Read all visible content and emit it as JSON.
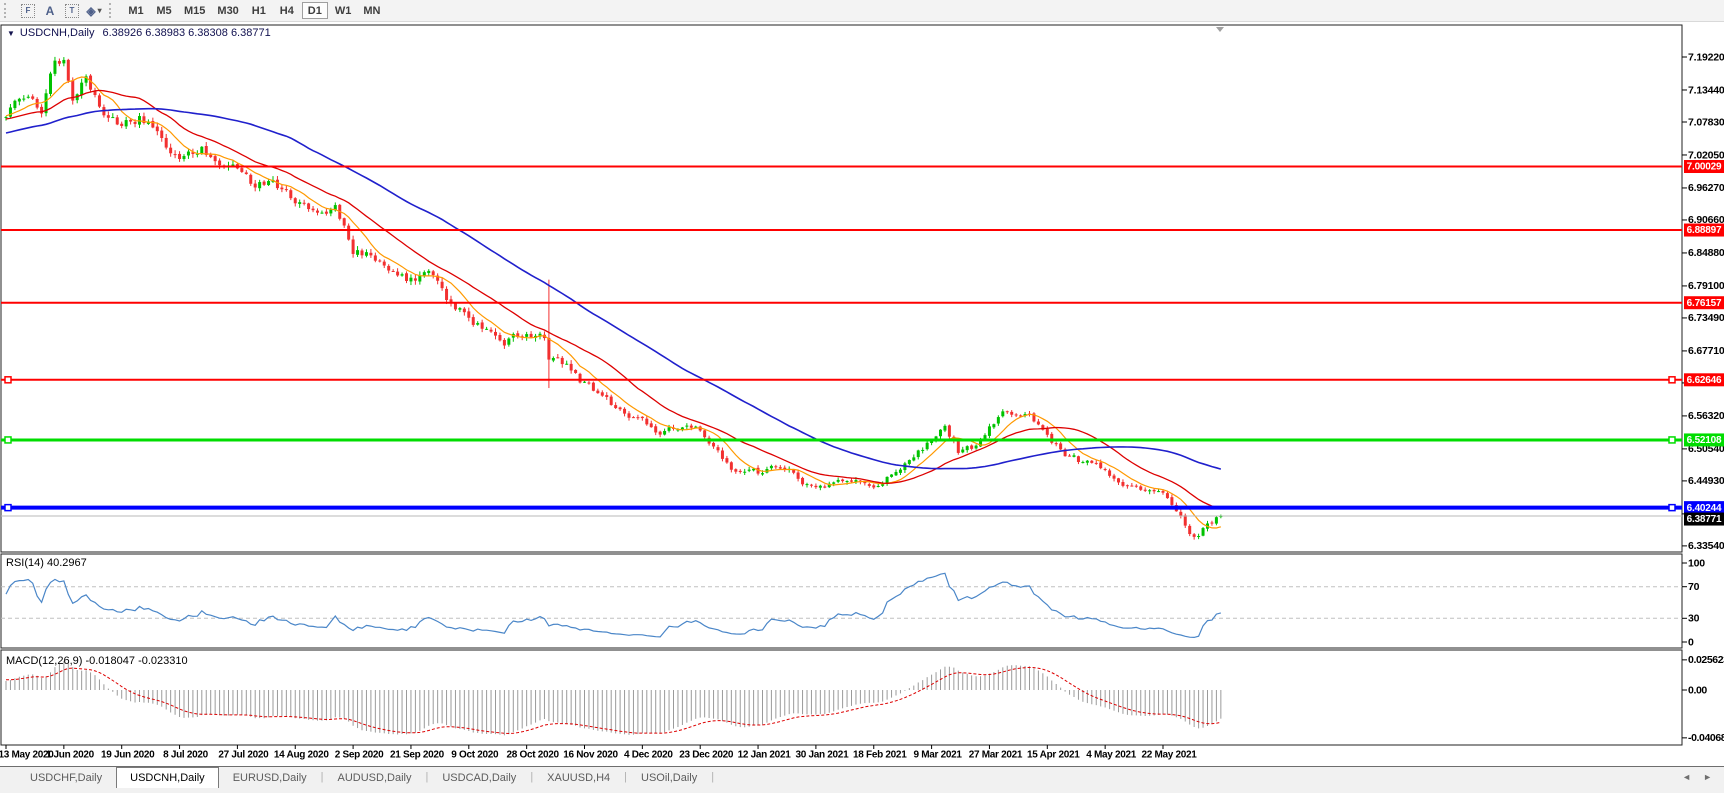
{
  "icons": {
    "collapse_triangle": "▼",
    "fibonacci_glyph": "F",
    "text_glyph": "A",
    "text_label_glyph": "T",
    "arrows_glyph": "◈",
    "dropdown_caret": "▾",
    "tab_scroll_left": "◄",
    "tab_scroll_right": "►",
    "chart_shift_marker": "triangle"
  },
  "toolbar": {
    "tools": [
      {
        "name": "fibonacci-tool",
        "glyph": "F",
        "boxed": true
      },
      {
        "name": "text-tool",
        "glyph": "A",
        "boxed": false
      },
      {
        "name": "text-label-tool",
        "glyph": "T",
        "boxed": true
      },
      {
        "name": "arrows-tool",
        "glyph": "◈",
        "boxed": false,
        "dropdown": true
      }
    ],
    "timeframes": [
      "M1",
      "M5",
      "M15",
      "M30",
      "H1",
      "H4",
      "D1",
      "W1",
      "MN"
    ],
    "active_timeframe": "D1"
  },
  "chart": {
    "title": "USDCNH,Daily",
    "quote_string": "6.38926 6.38983 6.38308 6.38771"
  },
  "chart_data": {
    "type": "candlestick",
    "symbol": "USDCNH",
    "period": "Daily",
    "quote": {
      "open": 6.38926,
      "high": 6.38983,
      "low": 6.38308,
      "close": 6.38771
    },
    "colors": {
      "up": "#00C200",
      "down": "#F23030",
      "ma_fast": "#FF9900",
      "ma_mid": "#DD0000",
      "ma_slow": "#2020CC",
      "hline_red": "#FF0000",
      "hline_green": "#00DD00",
      "hline_blue": "#0000FF",
      "bid_line": "#B8B8B8",
      "bid_label_bg": "#000000",
      "rsi_line": "#4A86C8",
      "rsi_level_dash": "#C0C0C0",
      "macd_histogram": "#9A9A9A",
      "macd_signal": "#DD0000",
      "panel_border": "#222222",
      "axis_text": "#000000"
    },
    "price_axis_ticks": [
      "7.19220",
      "7.13440",
      "7.07830",
      "7.02050",
      "6.96270",
      "6.90660",
      "6.84880",
      "6.79100",
      "6.73490",
      "6.67710",
      "6.62100",
      "6.56320",
      "6.50540",
      "6.44930",
      "6.39150",
      "6.33540"
    ],
    "x_axis_labels": [
      "13 May 2020",
      "1 Jun 2020",
      "19 Jun 2020",
      "8 Jul 2020",
      "27 Jul 2020",
      "14 Aug 2020",
      "2 Sep 2020",
      "21 Sep 2020",
      "9 Oct 2020",
      "28 Oct 2020",
      "16 Nov 2020",
      "4 Dec 2020",
      "23 Dec 2020",
      "12 Jan 2021",
      "30 Jan 2021",
      "18 Feb 2021",
      "9 Mar 2021",
      "27 Mar 2021",
      "15 Apr 2021",
      "4 May 2021",
      "22 May 2021"
    ],
    "candles_per_label": 13,
    "visible_candles": 274,
    "horizontal_lines": [
      {
        "price": 7.00029,
        "label": "7.00029",
        "color": "#FF0000",
        "width": 2,
        "selected": false
      },
      {
        "price": 6.88897,
        "label": "6.88897",
        "color": "#FF0000",
        "width": 2,
        "selected": false
      },
      {
        "price": 6.76157,
        "label": "6.76157",
        "color": "#FF0000",
        "width": 2,
        "selected": false
      },
      {
        "price": 6.62646,
        "label": "6.62646",
        "color": "#FF0000",
        "width": 2,
        "selected": true
      },
      {
        "price": 6.52108,
        "label": "6.52108",
        "color": "#00DD00",
        "width": 3,
        "selected": true
      },
      {
        "price": 6.40244,
        "label": "6.40244",
        "color": "#0000FF",
        "width": 4,
        "selected": true
      }
    ],
    "bid_line": {
      "price": 6.38771,
      "label": "6.38771"
    },
    "moving_averages": [
      {
        "name": "fast",
        "period": 8,
        "color": "#FF9900",
        "width": 1.2
      },
      {
        "name": "mid",
        "period": 21,
        "color": "#DD0000",
        "width": 1.3
      },
      {
        "name": "slow",
        "period": 55,
        "color": "#2020CC",
        "width": 1.6
      }
    ],
    "pre_history_anchors": [
      [
        -60,
        7.0
      ],
      [
        -45,
        7.03
      ],
      [
        -30,
        7.06
      ],
      [
        -15,
        7.08
      ],
      [
        -1,
        7.09
      ]
    ],
    "price_path_anchors": [
      [
        0,
        7.095
      ],
      [
        4,
        7.125
      ],
      [
        8,
        7.1
      ],
      [
        11,
        7.185
      ],
      [
        13,
        7.19
      ],
      [
        15,
        7.125
      ],
      [
        18,
        7.155
      ],
      [
        22,
        7.095
      ],
      [
        26,
        7.07
      ],
      [
        30,
        7.085
      ],
      [
        34,
        7.06
      ],
      [
        39,
        7.008
      ],
      [
        44,
        7.03
      ],
      [
        48,
        6.993
      ],
      [
        52,
        7.002
      ],
      [
        56,
        6.968
      ],
      [
        60,
        6.976
      ],
      [
        65,
        6.945
      ],
      [
        70,
        6.92
      ],
      [
        74,
        6.932
      ],
      [
        78,
        6.85
      ],
      [
        83,
        6.84
      ],
      [
        87,
        6.818
      ],
      [
        91,
        6.8
      ],
      [
        95,
        6.818
      ],
      [
        99,
        6.772
      ],
      [
        104,
        6.73
      ],
      [
        108,
        6.712
      ],
      [
        112,
        6.695
      ],
      [
        117,
        6.708
      ],
      [
        121,
        6.7
      ],
      [
        122,
        6.66
      ],
      [
        126,
        6.648
      ],
      [
        130,
        6.62
      ],
      [
        134,
        6.598
      ],
      [
        138,
        6.572
      ],
      [
        143,
        6.556
      ],
      [
        147,
        6.532
      ],
      [
        151,
        6.546
      ],
      [
        156,
        6.536
      ],
      [
        160,
        6.502
      ],
      [
        164,
        6.462
      ],
      [
        169,
        6.462
      ],
      [
        173,
        6.476
      ],
      [
        177,
        6.462
      ],
      [
        182,
        6.432
      ],
      [
        186,
        6.45
      ],
      [
        190,
        6.456
      ],
      [
        195,
        6.442
      ],
      [
        199,
        6.462
      ],
      [
        203,
        6.49
      ],
      [
        208,
        6.52
      ],
      [
        211,
        6.544
      ],
      [
        214,
        6.502
      ],
      [
        218,
        6.512
      ],
      [
        221,
        6.544
      ],
      [
        225,
        6.574
      ],
      [
        228,
        6.568
      ],
      [
        231,
        6.556
      ],
      [
        234,
        6.53
      ],
      [
        238,
        6.492
      ],
      [
        242,
        6.482
      ],
      [
        247,
        6.47
      ],
      [
        251,
        6.444
      ],
      [
        255,
        6.432
      ],
      [
        260,
        6.43
      ],
      [
        263,
        6.402
      ],
      [
        266,
        6.362
      ],
      [
        268,
        6.353
      ],
      [
        270,
        6.376
      ],
      [
        272,
        6.386
      ],
      [
        273,
        6.3877
      ]
    ],
    "special_candles": [
      {
        "i": 122,
        "high": 6.802,
        "low": 6.612
      }
    ],
    "rsi": {
      "label": "RSI(14) 40.2967",
      "period": 14,
      "current": 40.2967,
      "levels": [
        {
          "v": 100,
          "label": "100",
          "dashed": false
        },
        {
          "v": 70,
          "label": "70",
          "dashed": true
        },
        {
          "v": 30,
          "label": "30",
          "dashed": true
        },
        {
          "v": 0,
          "label": "0",
          "dashed": false
        }
      ]
    },
    "macd": {
      "label": "MACD(12,26,9) -0.018047 -0.023310",
      "fast": 12,
      "slow": 26,
      "signal": 9,
      "current_macd": -0.018047,
      "current_signal": -0.02331,
      "axis_ticks": [
        {
          "v": 0.025623,
          "label": "0.025623"
        },
        {
          "v": 0,
          "label": "0.00"
        },
        {
          "v": -0.04068,
          "label": "-0.04068"
        }
      ]
    }
  },
  "tabs": [
    {
      "label": "USDCHF,Daily",
      "active": false
    },
    {
      "label": "USDCNH,Daily",
      "active": true
    },
    {
      "label": "EURUSD,Daily",
      "active": false
    },
    {
      "label": "AUDUSD,Daily",
      "active": false
    },
    {
      "label": "USDCAD,Daily",
      "active": false
    },
    {
      "label": "XAUUSD,H4",
      "active": false
    },
    {
      "label": "USOil,Daily",
      "active": false
    }
  ]
}
